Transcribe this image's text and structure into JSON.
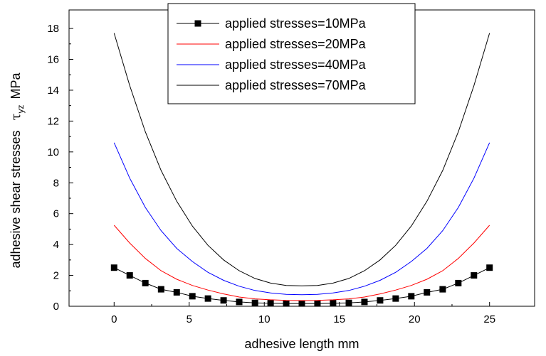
{
  "chart_data": {
    "type": "line",
    "xlabel": "adhesive length    mm",
    "ylabel": {
      "prefix": "adhesive shear stresses",
      "symbol": "τ",
      "subscript": "yz",
      "unit": "MPa"
    },
    "xlim": [
      -3,
      28
    ],
    "ylim": [
      0,
      19.2
    ],
    "xticks": [
      "0",
      "5",
      "10",
      "15",
      "20",
      "25"
    ],
    "yticks": [
      "0",
      "2",
      "4",
      "6",
      "8",
      "10",
      "12",
      "14",
      "16",
      "18"
    ],
    "grid": false,
    "legend_position": "top-center",
    "x": [
      0,
      1.04,
      2.08,
      3.13,
      4.17,
      5.21,
      6.25,
      7.29,
      8.33,
      9.38,
      10.42,
      11.46,
      12.5,
      13.54,
      14.58,
      15.63,
      16.67,
      17.71,
      18.75,
      19.79,
      20.83,
      21.88,
      22.92,
      23.96,
      25
    ],
    "series": [
      {
        "name": "applied stresses=10MPa",
        "color": "#000000",
        "marker": "square",
        "values": [
          2.5,
          2.0,
          1.5,
          1.1,
          0.9,
          0.65,
          0.5,
          0.38,
          0.28,
          0.22,
          0.2,
          0.18,
          0.18,
          0.18,
          0.2,
          0.22,
          0.28,
          0.38,
          0.5,
          0.65,
          0.9,
          1.1,
          1.5,
          2.0,
          2.5
        ]
      },
      {
        "name": "applied stresses=20MPa",
        "color": "#ff0000",
        "marker": "none",
        "values": [
          5.25,
          4.1,
          3.1,
          2.3,
          1.75,
          1.35,
          1.05,
          0.8,
          0.6,
          0.48,
          0.42,
          0.38,
          0.37,
          0.38,
          0.42,
          0.48,
          0.6,
          0.8,
          1.05,
          1.35,
          1.75,
          2.3,
          3.1,
          4.1,
          5.25
        ]
      },
      {
        "name": "applied stresses=40MPa",
        "color": "#0000ff",
        "marker": "none",
        "values": [
          10.6,
          8.3,
          6.4,
          4.9,
          3.75,
          2.9,
          2.2,
          1.68,
          1.3,
          1.02,
          0.86,
          0.77,
          0.75,
          0.77,
          0.86,
          1.02,
          1.3,
          1.68,
          2.2,
          2.9,
          3.75,
          4.9,
          6.4,
          8.3,
          10.6
        ]
      },
      {
        "name": "applied stresses=70MPa",
        "color": "#000000",
        "marker": "none",
        "values": [
          17.7,
          14.3,
          11.3,
          8.8,
          6.8,
          5.2,
          3.95,
          3.0,
          2.3,
          1.8,
          1.5,
          1.35,
          1.32,
          1.35,
          1.5,
          1.8,
          2.3,
          3.0,
          3.95,
          5.2,
          6.8,
          8.8,
          11.3,
          14.3,
          17.7
        ]
      }
    ]
  }
}
